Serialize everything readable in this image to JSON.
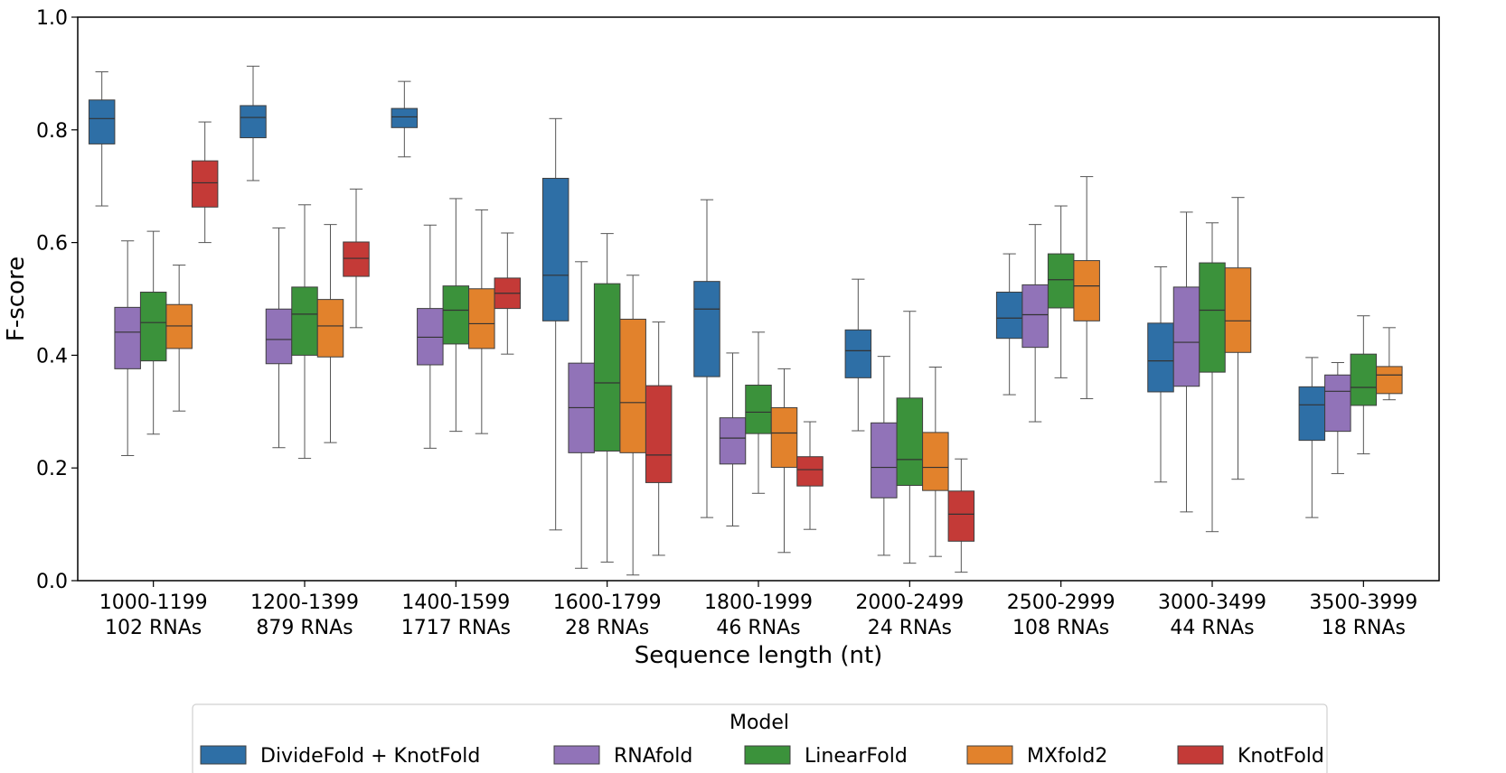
{
  "chart_data": {
    "type": "box",
    "xlabel": "Sequence length (nt)",
    "ylabel": "F-score",
    "ylim": [
      0.0,
      1.0
    ],
    "yticks": [
      "0.0",
      "0.2",
      "0.4",
      "0.6",
      "0.8",
      "1.0"
    ],
    "grid": false,
    "categories": [
      {
        "range": "1000-1199",
        "count": "102 RNAs"
      },
      {
        "range": "1200-1399",
        "count": "879 RNAs"
      },
      {
        "range": "1400-1599",
        "count": "1717 RNAs"
      },
      {
        "range": "1600-1799",
        "count": "28 RNAs"
      },
      {
        "range": "1800-1999",
        "count": "46 RNAs"
      },
      {
        "range": "2000-2499",
        "count": "24 RNAs"
      },
      {
        "range": "2500-2999",
        "count": "108 RNAs"
      },
      {
        "range": "3000-3499",
        "count": "44 RNAs"
      },
      {
        "range": "3500-3999",
        "count": "18 RNAs"
      }
    ],
    "legend": {
      "title": "Model",
      "placement": "bottom-center"
    },
    "series": [
      {
        "name": "DivideFold + KnotFold",
        "color": "#2e6fa6",
        "boxes": [
          {
            "min": 0.665,
            "q1": 0.775,
            "median": 0.82,
            "q3": 0.853,
            "max": 0.903
          },
          {
            "min": 0.71,
            "q1": 0.786,
            "median": 0.822,
            "q3": 0.843,
            "max": 0.913
          },
          {
            "min": 0.752,
            "q1": 0.804,
            "median": 0.823,
            "q3": 0.838,
            "max": 0.886
          },
          {
            "min": 0.09,
            "q1": 0.461,
            "median": 0.542,
            "q3": 0.714,
            "max": 0.82
          },
          {
            "min": 0.112,
            "q1": 0.362,
            "median": 0.482,
            "q3": 0.531,
            "max": 0.676
          },
          {
            "min": 0.266,
            "q1": 0.36,
            "median": 0.408,
            "q3": 0.445,
            "max": 0.535
          },
          {
            "min": 0.33,
            "q1": 0.43,
            "median": 0.466,
            "q3": 0.512,
            "max": 0.58
          },
          {
            "min": 0.175,
            "q1": 0.335,
            "median": 0.39,
            "q3": 0.457,
            "max": 0.557
          },
          {
            "min": 0.112,
            "q1": 0.249,
            "median": 0.312,
            "q3": 0.344,
            "max": 0.396
          }
        ]
      },
      {
        "name": "RNAfold",
        "color": "#9173b8",
        "boxes": [
          {
            "min": 0.222,
            "q1": 0.376,
            "median": 0.441,
            "q3": 0.485,
            "max": 0.603
          },
          {
            "min": 0.236,
            "q1": 0.385,
            "median": 0.428,
            "q3": 0.482,
            "max": 0.626
          },
          {
            "min": 0.235,
            "q1": 0.383,
            "median": 0.432,
            "q3": 0.483,
            "max": 0.631
          },
          {
            "min": 0.022,
            "q1": 0.227,
            "median": 0.307,
            "q3": 0.386,
            "max": 0.566
          },
          {
            "min": 0.097,
            "q1": 0.207,
            "median": 0.253,
            "q3": 0.289,
            "max": 0.404
          },
          {
            "min": 0.045,
            "q1": 0.147,
            "median": 0.201,
            "q3": 0.28,
            "max": 0.398
          },
          {
            "min": 0.282,
            "q1": 0.414,
            "median": 0.472,
            "q3": 0.525,
            "max": 0.632
          },
          {
            "min": 0.122,
            "q1": 0.345,
            "median": 0.423,
            "q3": 0.521,
            "max": 0.654
          },
          {
            "min": 0.19,
            "q1": 0.265,
            "median": 0.336,
            "q3": 0.365,
            "max": 0.387
          }
        ]
      },
      {
        "name": "LinearFold",
        "color": "#3b923b",
        "boxes": [
          {
            "min": 0.26,
            "q1": 0.39,
            "median": 0.458,
            "q3": 0.512,
            "max": 0.62
          },
          {
            "min": 0.217,
            "q1": 0.4,
            "median": 0.473,
            "q3": 0.521,
            "max": 0.667
          },
          {
            "min": 0.265,
            "q1": 0.42,
            "median": 0.48,
            "q3": 0.523,
            "max": 0.678
          },
          {
            "min": 0.033,
            "q1": 0.23,
            "median": 0.351,
            "q3": 0.527,
            "max": 0.616
          },
          {
            "min": 0.155,
            "q1": 0.261,
            "median": 0.299,
            "q3": 0.347,
            "max": 0.441
          },
          {
            "min": 0.031,
            "q1": 0.169,
            "median": 0.215,
            "q3": 0.324,
            "max": 0.478
          },
          {
            "min": 0.36,
            "q1": 0.484,
            "median": 0.534,
            "q3": 0.58,
            "max": 0.665
          },
          {
            "min": 0.087,
            "q1": 0.37,
            "median": 0.48,
            "q3": 0.564,
            "max": 0.635
          },
          {
            "min": 0.225,
            "q1": 0.311,
            "median": 0.343,
            "q3": 0.402,
            "max": 0.47
          }
        ]
      },
      {
        "name": "MXfold2",
        "color": "#e2822c",
        "boxes": [
          {
            "min": 0.301,
            "q1": 0.412,
            "median": 0.452,
            "q3": 0.49,
            "max": 0.56
          },
          {
            "min": 0.245,
            "q1": 0.397,
            "median": 0.452,
            "q3": 0.499,
            "max": 0.632
          },
          {
            "min": 0.261,
            "q1": 0.412,
            "median": 0.456,
            "q3": 0.518,
            "max": 0.658
          },
          {
            "min": 0.01,
            "q1": 0.227,
            "median": 0.316,
            "q3": 0.464,
            "max": 0.542
          },
          {
            "min": 0.05,
            "q1": 0.201,
            "median": 0.262,
            "q3": 0.307,
            "max": 0.376
          },
          {
            "min": 0.043,
            "q1": 0.16,
            "median": 0.201,
            "q3": 0.263,
            "max": 0.379
          },
          {
            "min": 0.323,
            "q1": 0.461,
            "median": 0.523,
            "q3": 0.568,
            "max": 0.717
          },
          {
            "min": 0.18,
            "q1": 0.405,
            "median": 0.461,
            "q3": 0.555,
            "max": 0.68
          },
          {
            "min": 0.321,
            "q1": 0.332,
            "median": 0.365,
            "q3": 0.38,
            "max": 0.449
          }
        ]
      },
      {
        "name": "KnotFold",
        "color": "#c43a37",
        "boxes": [
          {
            "min": 0.6,
            "q1": 0.663,
            "median": 0.706,
            "q3": 0.745,
            "max": 0.814
          },
          {
            "min": 0.449,
            "q1": 0.54,
            "median": 0.572,
            "q3": 0.601,
            "max": 0.695
          },
          {
            "min": 0.402,
            "q1": 0.483,
            "median": 0.51,
            "q3": 0.537,
            "max": 0.617
          },
          {
            "min": 0.045,
            "q1": 0.174,
            "median": 0.223,
            "q3": 0.346,
            "max": 0.459
          },
          {
            "min": 0.091,
            "q1": 0.168,
            "median": 0.197,
            "q3": 0.22,
            "max": 0.282
          },
          {
            "min": 0.015,
            "q1": 0.07,
            "median": 0.118,
            "q3": 0.159,
            "max": 0.216
          },
          null,
          null,
          null
        ]
      }
    ]
  }
}
